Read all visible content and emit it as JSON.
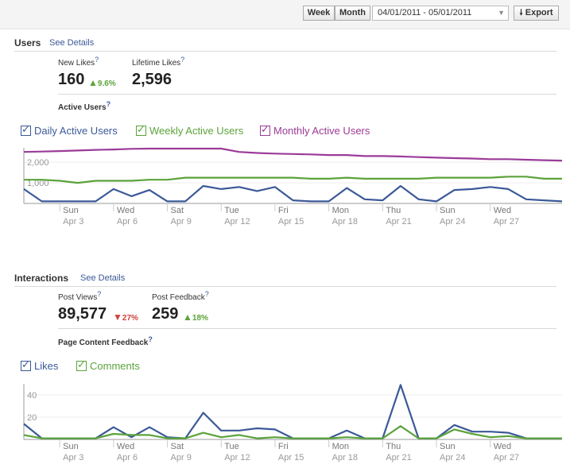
{
  "toolbar": {
    "week_label": "Week",
    "month_label": "Month",
    "date_range": "04/01/2011 - 05/01/2011",
    "export_label": "Export"
  },
  "users": {
    "title": "Users",
    "see_details": "See Details",
    "new_likes_label": "New Likes",
    "new_likes_value": "160",
    "new_likes_pct": "9.6%",
    "lifetime_likes_label": "Lifetime Likes",
    "lifetime_likes_value": "2,596",
    "active_users_label": "Active Users",
    "help_mark": "?"
  },
  "interactions": {
    "title": "Interactions",
    "see_details": "See Details",
    "post_views_label": "Post Views",
    "post_views_value": "89,577",
    "post_views_pct": "27%",
    "post_feedback_label": "Post Feedback",
    "post_feedback_value": "259",
    "post_feedback_pct": "18%",
    "page_content_label": "Page Content Feedback",
    "help_mark": "?"
  },
  "colors": {
    "daily": "#3b5998",
    "weekly": "#5ba33a",
    "monthly": "#9b3b98",
    "likes": "#3b5998",
    "comments": "#5ba33a"
  },
  "icons": {
    "export": "download-arrow-icon",
    "checkbox": "checkbox-checked-icon"
  },
  "chart_data": [
    {
      "type": "line",
      "x_day_labels": [
        "Sun",
        "Wed",
        "Sat",
        "Tue",
        "Fri",
        "Mon",
        "Thu",
        "Sun",
        "Wed"
      ],
      "x_date_labels": [
        "Apr 3",
        "Apr 6",
        "Apr 9",
        "Apr 12",
        "Apr 15",
        "Apr 18",
        "Apr 21",
        "Apr 24",
        "Apr 27"
      ],
      "y_ticks": [
        "1,000",
        "2,000"
      ],
      "ylim": [
        0,
        2700
      ],
      "series": [
        {
          "name": "Daily Active Users",
          "key": "daily",
          "values": [
            700,
            100,
            100,
            100,
            100,
            700,
            350,
            650,
            100,
            100,
            850,
            700,
            800,
            600,
            800,
            150,
            100,
            100,
            750,
            200,
            150,
            850,
            200,
            100,
            650,
            700,
            800,
            700,
            200,
            150,
            100
          ]
        },
        {
          "name": "Weekly Active Users",
          "key": "weekly",
          "values": [
            1150,
            1150,
            1100,
            1000,
            1100,
            1100,
            1100,
            1150,
            1150,
            1250,
            1250,
            1250,
            1250,
            1250,
            1250,
            1250,
            1200,
            1200,
            1250,
            1200,
            1200,
            1200,
            1200,
            1250,
            1250,
            1250,
            1250,
            1300,
            1300,
            1200,
            1200
          ]
        },
        {
          "name": "Monthly Active Users",
          "key": "monthly",
          "values": [
            2500,
            2520,
            2540,
            2570,
            2600,
            2620,
            2650,
            2660,
            2660,
            2660,
            2660,
            2660,
            2500,
            2450,
            2420,
            2400,
            2380,
            2350,
            2350,
            2300,
            2300,
            2280,
            2250,
            2220,
            2200,
            2180,
            2150,
            2150,
            2120,
            2100,
            2080
          ]
        }
      ]
    },
    {
      "type": "line",
      "x_day_labels": [
        "Sun",
        "Wed",
        "Sat",
        "Tue",
        "Fri",
        "Mon",
        "Thu",
        "Sun",
        "Wed"
      ],
      "x_date_labels": [
        "Apr 3",
        "Apr 6",
        "Apr 9",
        "Apr 12",
        "Apr 15",
        "Apr 18",
        "Apr 21",
        "Apr 24",
        "Apr 27"
      ],
      "y_ticks": [
        "20",
        "40"
      ],
      "ylim": [
        0,
        50
      ],
      "series": [
        {
          "name": "Likes",
          "key": "likes",
          "values": [
            14,
            1,
            1,
            1,
            1,
            11,
            2,
            11,
            2,
            1,
            24,
            8,
            8,
            10,
            9,
            1,
            1,
            1,
            8,
            1,
            1,
            49,
            1,
            1,
            13,
            7,
            7,
            6,
            1,
            1,
            1
          ]
        },
        {
          "name": "Comments",
          "key": "comments",
          "values": [
            4,
            1,
            1,
            1,
            1,
            5,
            4,
            4,
            1,
            1,
            6,
            2,
            4,
            1,
            2,
            1,
            1,
            1,
            2,
            1,
            1,
            12,
            1,
            1,
            9,
            5,
            2,
            3,
            1,
            1,
            1
          ]
        }
      ]
    }
  ]
}
